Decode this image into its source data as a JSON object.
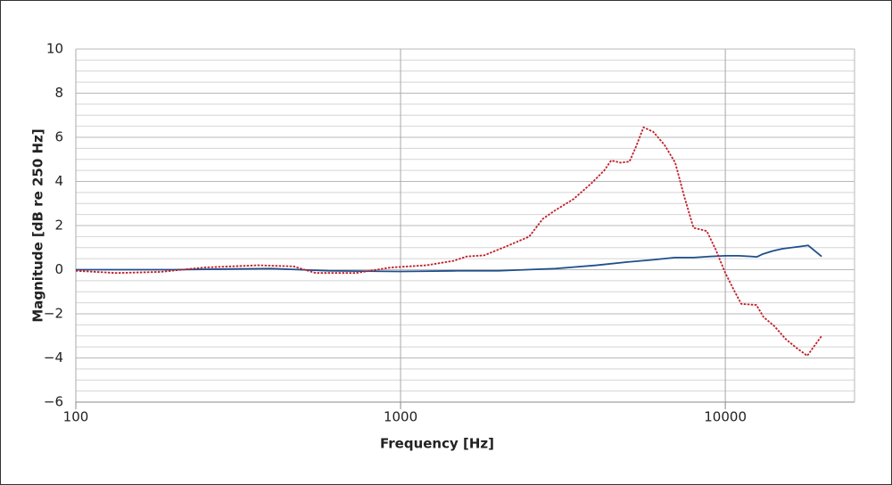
{
  "chart_data": {
    "type": "line",
    "x_label": "Frequency [Hz]",
    "y_label": "Magnitude [dB re 250 Hz]",
    "x_log": true,
    "xlim": [
      100,
      25000
    ],
    "xticks": [
      100,
      1000,
      10000
    ],
    "ylim": [
      -6,
      10
    ],
    "yticks": [
      {
        "value": -6,
        "label": "−6"
      },
      {
        "value": -4,
        "label": "−4"
      },
      {
        "value": -2,
        "label": "−2"
      },
      0,
      2,
      4,
      6,
      8,
      10
    ],
    "minor_yticks": [
      -5.5,
      -5,
      -4.5,
      -3.5,
      -3,
      -2.5,
      -1.5,
      -1,
      -0.5,
      0.5,
      1,
      1.5,
      2.5,
      3,
      3.5,
      4.5,
      5,
      5.5,
      6.5,
      7,
      7.5,
      8.5,
      9,
      9.5
    ],
    "grid": true,
    "series": [
      {
        "color": "#1f4e8c",
        "dash": "solid",
        "x": [
          100,
          200,
          400,
          600,
          1000,
          1500,
          2000,
          3000,
          4000,
          5000,
          6000,
          7000,
          8000,
          9000,
          10000,
          11000,
          12000,
          12500,
          13000,
          14000,
          15000,
          17000,
          18000,
          19800
        ],
        "values": [
          0,
          0,
          0.05,
          -0.05,
          -0.08,
          -0.05,
          -0.05,
          0.05,
          0.2,
          0.35,
          0.45,
          0.55,
          0.55,
          0.6,
          0.63,
          0.63,
          0.6,
          0.58,
          0.7,
          0.85,
          0.95,
          1.05,
          1.1,
          0.6
        ]
      },
      {
        "color": "#c0202a",
        "dash": "dotted",
        "x": [
          100,
          133,
          182,
          249,
          364,
          468,
          548,
          728,
          935,
          1200,
          1455,
          1600,
          1810,
          2110,
          2490,
          2740,
          3000,
          3410,
          3860,
          4240,
          4450,
          4760,
          5070,
          5300,
          5600,
          6000,
          6500,
          7010,
          7480,
          7980,
          8770,
          9350,
          10000,
          10650,
          11200,
          12470,
          13120,
          14140,
          15360,
          16580,
          17880,
          19800
        ],
        "values": [
          -0.05,
          -0.15,
          -0.1,
          0.1,
          0.2,
          0.15,
          -0.15,
          -0.15,
          0.1,
          0.2,
          0.4,
          0.6,
          0.65,
          1.05,
          1.5,
          2.3,
          2.7,
          3.2,
          3.9,
          4.5,
          4.95,
          4.85,
          4.9,
          5.55,
          6.45,
          6.25,
          5.65,
          4.85,
          3.3,
          1.9,
          1.75,
          0.9,
          -0.15,
          -0.95,
          -1.55,
          -1.6,
          -2.15,
          -2.55,
          -3.15,
          -3.55,
          -3.9,
          -3.0
        ]
      }
    ]
  }
}
